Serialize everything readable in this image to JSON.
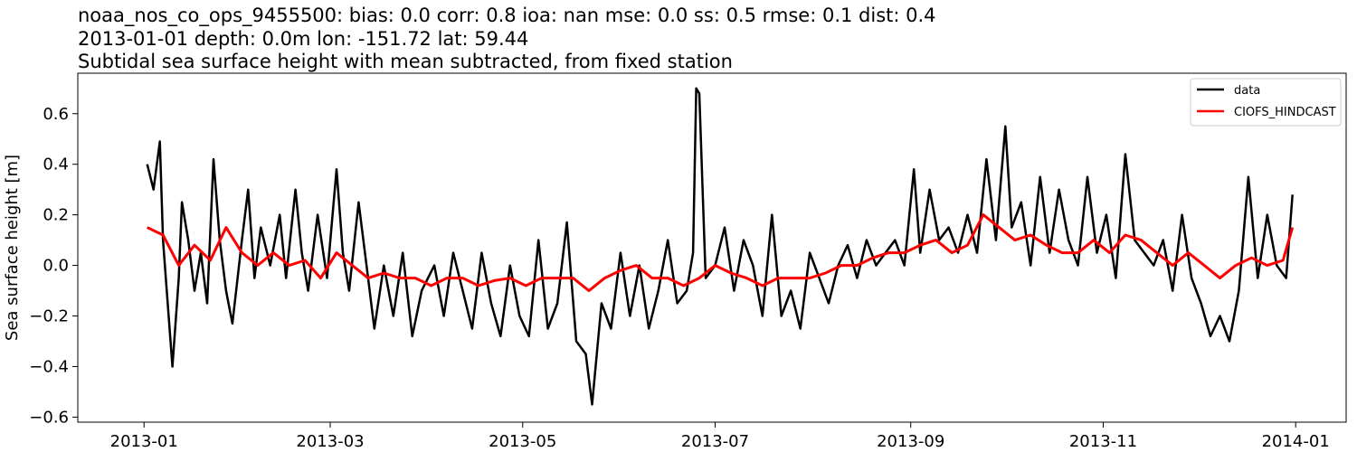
{
  "chart_data": {
    "type": "line",
    "title_lines": [
      "noaa_nos_co_ops_9455500: bias: 0.0  corr: 0.8  ioa: nan  mse: 0.0  ss: 0.5  rmse: 0.1  dist: 0.4",
      "2013-01-01 depth: 0.0m lon: -151.72 lat: 59.44",
      "Subtidal sea surface height with mean subtracted, from fixed station"
    ],
    "xlabel": "",
    "ylabel": "Sea surface height [m]",
    "xlim": [
      "2012-12-11",
      "2014-01-17"
    ],
    "ylim": [
      -0.62,
      0.76
    ],
    "x_ticks": [
      "2013-01",
      "2013-03",
      "2013-05",
      "2013-07",
      "2013-09",
      "2013-11",
      "2014-01"
    ],
    "y_ticks": [
      "0.6",
      "0.4",
      "0.2",
      "0.0",
      "−0.2",
      "−0.4",
      "−0.6"
    ],
    "y_tick_values": [
      0.6,
      0.4,
      0.2,
      0.0,
      -0.2,
      -0.4,
      -0.6
    ],
    "grid": false,
    "legend": {
      "position": "top-right",
      "entries": [
        {
          "name": "data",
          "color": "#000000"
        },
        {
          "name": "CIOFS_HINDCAST",
          "color": "#ff0000"
        }
      ]
    },
    "series": [
      {
        "name": "data",
        "color": "#000000",
        "x": [
          "2013-01-02",
          "2013-01-04",
          "2013-01-06",
          "2013-01-07",
          "2013-01-08",
          "2013-01-10",
          "2013-01-12",
          "2013-01-13",
          "2013-01-15",
          "2013-01-17",
          "2013-01-19",
          "2013-01-21",
          "2013-01-23",
          "2013-01-25",
          "2013-01-27",
          "2013-01-29",
          "2013-02-01",
          "2013-02-03",
          "2013-02-05",
          "2013-02-07",
          "2013-02-10",
          "2013-02-13",
          "2013-02-15",
          "2013-02-18",
          "2013-02-20",
          "2013-02-22",
          "2013-02-25",
          "2013-02-28",
          "2013-03-03",
          "2013-03-05",
          "2013-03-07",
          "2013-03-10",
          "2013-03-13",
          "2013-03-15",
          "2013-03-18",
          "2013-03-21",
          "2013-03-24",
          "2013-03-27",
          "2013-03-30",
          "2013-04-03",
          "2013-04-06",
          "2013-04-09",
          "2013-04-12",
          "2013-04-15",
          "2013-04-18",
          "2013-04-21",
          "2013-04-24",
          "2013-04-27",
          "2013-04-30",
          "2013-05-03",
          "2013-05-06",
          "2013-05-09",
          "2013-05-12",
          "2013-05-15",
          "2013-05-18",
          "2013-05-21",
          "2013-05-23",
          "2013-05-26",
          "2013-05-29",
          "2013-06-01",
          "2013-06-04",
          "2013-06-07",
          "2013-06-10",
          "2013-06-13",
          "2013-06-16",
          "2013-06-19",
          "2013-06-22",
          "2013-06-24",
          "2013-06-25",
          "2013-06-26",
          "2013-06-28",
          "2013-07-01",
          "2013-07-04",
          "2013-07-07",
          "2013-07-10",
          "2013-07-13",
          "2013-07-16",
          "2013-07-19",
          "2013-07-22",
          "2013-07-25",
          "2013-07-28",
          "2013-07-31",
          "2013-08-03",
          "2013-08-06",
          "2013-08-09",
          "2013-08-12",
          "2013-08-15",
          "2013-08-18",
          "2013-08-21",
          "2013-08-24",
          "2013-08-27",
          "2013-08-30",
          "2013-09-02",
          "2013-09-04",
          "2013-09-07",
          "2013-09-10",
          "2013-09-13",
          "2013-09-16",
          "2013-09-19",
          "2013-09-22",
          "2013-09-25",
          "2013-09-28",
          "2013-10-01",
          "2013-10-03",
          "2013-10-06",
          "2013-10-09",
          "2013-10-12",
          "2013-10-15",
          "2013-10-18",
          "2013-10-21",
          "2013-10-24",
          "2013-10-27",
          "2013-10-30",
          "2013-11-02",
          "2013-11-05",
          "2013-11-08",
          "2013-11-11",
          "2013-11-14",
          "2013-11-17",
          "2013-11-20",
          "2013-11-23",
          "2013-11-26",
          "2013-11-29",
          "2013-12-02",
          "2013-12-05",
          "2013-12-08",
          "2013-12-11",
          "2013-12-14",
          "2013-12-17",
          "2013-12-20",
          "2013-12-23",
          "2013-12-26",
          "2013-12-29",
          "2013-12-31"
        ],
        "y": [
          0.4,
          0.3,
          0.49,
          0.1,
          -0.07,
          -0.4,
          -0.05,
          0.25,
          0.1,
          -0.1,
          0.05,
          -0.15,
          0.42,
          0.1,
          -0.1,
          -0.23,
          0.1,
          0.3,
          -0.05,
          0.15,
          0.0,
          0.2,
          -0.05,
          0.3,
          0.05,
          -0.1,
          0.2,
          -0.05,
          0.38,
          0.05,
          -0.1,
          0.25,
          -0.05,
          -0.25,
          0.0,
          -0.2,
          0.05,
          -0.28,
          -0.1,
          0.0,
          -0.2,
          0.05,
          -0.1,
          -0.25,
          0.05,
          -0.15,
          -0.28,
          0.0,
          -0.2,
          -0.28,
          0.1,
          -0.25,
          -0.15,
          0.17,
          -0.3,
          -0.35,
          -0.55,
          -0.15,
          -0.25,
          0.05,
          -0.2,
          0.0,
          -0.25,
          -0.1,
          0.1,
          -0.15,
          -0.1,
          0.05,
          0.7,
          0.68,
          -0.05,
          0.0,
          0.15,
          -0.1,
          0.1,
          0.0,
          -0.2,
          0.2,
          -0.2,
          -0.1,
          -0.25,
          0.05,
          -0.05,
          -0.15,
          0.0,
          0.08,
          -0.05,
          0.1,
          0.0,
          0.05,
          0.1,
          0.0,
          0.38,
          0.05,
          0.3,
          0.1,
          0.15,
          0.05,
          0.2,
          0.05,
          0.42,
          0.1,
          0.55,
          0.15,
          0.25,
          0.0,
          0.35,
          0.05,
          0.3,
          0.1,
          0.0,
          0.35,
          0.05,
          0.2,
          -0.05,
          0.44,
          0.1,
          0.05,
          0.0,
          0.1,
          -0.1,
          0.2,
          -0.05,
          -0.15,
          -0.28,
          -0.2,
          -0.3,
          -0.1,
          0.35,
          -0.05,
          0.2,
          0.0,
          -0.05,
          0.28
        ]
      },
      {
        "name": "CIOFS_HINDCAST",
        "color": "#ff0000",
        "x": [
          "2013-01-02",
          "2013-01-07",
          "2013-01-12",
          "2013-01-17",
          "2013-01-22",
          "2013-01-27",
          "2013-02-01",
          "2013-02-06",
          "2013-02-11",
          "2013-02-16",
          "2013-02-21",
          "2013-02-26",
          "2013-03-03",
          "2013-03-08",
          "2013-03-13",
          "2013-03-18",
          "2013-03-23",
          "2013-03-28",
          "2013-04-02",
          "2013-04-07",
          "2013-04-12",
          "2013-04-17",
          "2013-04-22",
          "2013-04-27",
          "2013-05-02",
          "2013-05-07",
          "2013-05-12",
          "2013-05-17",
          "2013-05-22",
          "2013-05-27",
          "2013-06-01",
          "2013-06-06",
          "2013-06-11",
          "2013-06-16",
          "2013-06-21",
          "2013-06-26",
          "2013-07-01",
          "2013-07-06",
          "2013-07-11",
          "2013-07-16",
          "2013-07-21",
          "2013-07-26",
          "2013-07-31",
          "2013-08-05",
          "2013-08-10",
          "2013-08-15",
          "2013-08-20",
          "2013-08-25",
          "2013-08-30",
          "2013-09-04",
          "2013-09-09",
          "2013-09-14",
          "2013-09-19",
          "2013-09-24",
          "2013-09-29",
          "2013-10-04",
          "2013-10-09",
          "2013-10-14",
          "2013-10-19",
          "2013-10-24",
          "2013-10-29",
          "2013-11-03",
          "2013-11-08",
          "2013-11-13",
          "2013-11-18",
          "2013-11-23",
          "2013-11-28",
          "2013-12-03",
          "2013-12-08",
          "2013-12-13",
          "2013-12-18",
          "2013-12-23",
          "2013-12-28",
          "2013-12-31"
        ],
        "y": [
          0.15,
          0.12,
          0.0,
          0.08,
          0.02,
          0.15,
          0.05,
          0.0,
          0.05,
          0.0,
          0.02,
          -0.05,
          0.05,
          0.0,
          -0.05,
          -0.03,
          -0.05,
          -0.05,
          -0.08,
          -0.05,
          -0.05,
          -0.08,
          -0.06,
          -0.05,
          -0.08,
          -0.05,
          -0.05,
          -0.05,
          -0.1,
          -0.05,
          -0.02,
          0.0,
          -0.05,
          -0.05,
          -0.08,
          -0.05,
          0.0,
          -0.03,
          -0.05,
          -0.08,
          -0.05,
          -0.05,
          -0.05,
          -0.03,
          0.0,
          0.0,
          0.03,
          0.05,
          0.05,
          0.08,
          0.1,
          0.05,
          0.08,
          0.2,
          0.15,
          0.1,
          0.12,
          0.08,
          0.05,
          0.05,
          0.1,
          0.05,
          0.12,
          0.1,
          0.05,
          0.0,
          0.05,
          0.0,
          -0.05,
          0.0,
          0.03,
          0.0,
          0.02,
          0.15
        ]
      }
    ]
  }
}
